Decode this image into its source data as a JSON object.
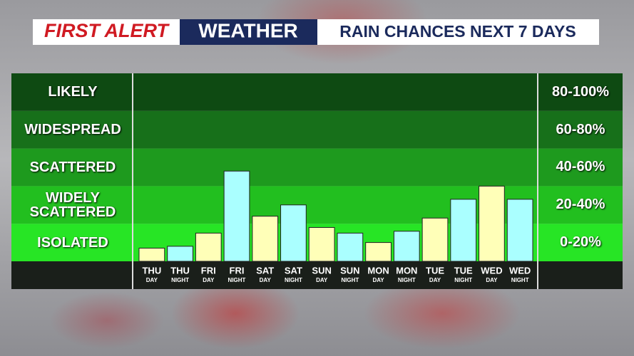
{
  "chart_data": {
    "type": "bar",
    "brand": [
      "FIRST ALERT",
      "WEATHER"
    ],
    "title": "RAIN CHANCES NEXT 7 DAYS",
    "categories": [
      "THU",
      "THU",
      "FRI",
      "FRI",
      "SAT",
      "SAT",
      "SUN",
      "SUN",
      "MON",
      "MON",
      "TUE",
      "TUE",
      "WED",
      "WED"
    ],
    "periods": [
      "DAY",
      "NIGHT",
      "DAY",
      "NIGHT",
      "DAY",
      "NIGHT",
      "DAY",
      "NIGHT",
      "DAY",
      "NIGHT",
      "DAY",
      "NIGHT",
      "DAY",
      "NIGHT"
    ],
    "values": [
      7,
      8,
      15,
      48,
      24,
      30,
      18,
      15,
      10,
      16,
      23,
      33,
      40,
      33
    ],
    "bar_colors": [
      "#ffffb8",
      "#aaffff",
      "#ffffb8",
      "#aaffff",
      "#ffffb8",
      "#aaffff",
      "#ffffb8",
      "#aaffff",
      "#ffffb8",
      "#aaffff",
      "#ffffb8",
      "#aaffff",
      "#ffffb8",
      "#aaffff"
    ],
    "ylim": [
      0,
      100
    ],
    "bands": [
      {
        "label": "LIKELY",
        "range": "80-100%",
        "from": 80,
        "to": 100,
        "color": "#0e4a12"
      },
      {
        "label": "WIDESPREAD",
        "range": "60-80%",
        "from": 60,
        "to": 80,
        "color": "#17701a"
      },
      {
        "label": "SCATTERED",
        "range": "40-60%",
        "from": 40,
        "to": 60,
        "color": "#1e9a1e"
      },
      {
        "label": "WIDELY SCATTERED",
        "range": "20-40%",
        "from": 20,
        "to": 40,
        "color": "#22bf1f"
      },
      {
        "label": "ISOLATED",
        "range": "0-20%",
        "from": 0,
        "to": 20,
        "color": "#27e525"
      }
    ]
  }
}
